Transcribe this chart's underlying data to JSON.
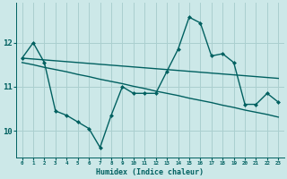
{
  "xlabel": "Humidex (Indice chaleur)",
  "x": [
    0,
    1,
    2,
    3,
    4,
    5,
    6,
    7,
    8,
    9,
    10,
    11,
    12,
    13,
    14,
    15,
    16,
    17,
    18,
    19,
    20,
    21,
    22,
    23
  ],
  "line1": [
    11.65,
    12.0,
    11.55,
    10.45,
    10.35,
    10.2,
    10.05,
    9.62,
    10.35,
    11.0,
    10.85,
    10.85,
    10.85,
    11.35,
    11.85,
    12.58,
    12.45,
    11.7,
    11.75,
    11.55,
    10.6,
    10.6,
    10.85,
    10.65
  ],
  "line2": [
    11.65,
    11.63,
    11.61,
    11.59,
    11.57,
    11.55,
    11.53,
    11.51,
    11.49,
    11.47,
    11.45,
    11.43,
    11.41,
    11.39,
    11.37,
    11.35,
    11.33,
    11.31,
    11.29,
    11.27,
    11.25,
    11.23,
    11.21,
    11.19
  ],
  "line3": [
    11.55,
    11.5,
    11.44,
    11.39,
    11.34,
    11.28,
    11.23,
    11.17,
    11.12,
    11.07,
    11.01,
    10.96,
    10.9,
    10.85,
    10.8,
    10.74,
    10.69,
    10.64,
    10.58,
    10.53,
    10.47,
    10.42,
    10.37,
    10.31
  ],
  "bg_color": "#cce8e8",
  "grid_color": "#aacfcf",
  "line_color": "#006060",
  "marker": "D",
  "markersize": 2.5,
  "ylim": [
    9.4,
    12.9
  ],
  "yticks": [
    10,
    11,
    12
  ],
  "xlim": [
    -0.5,
    23.5
  ],
  "linewidth": 1.0
}
